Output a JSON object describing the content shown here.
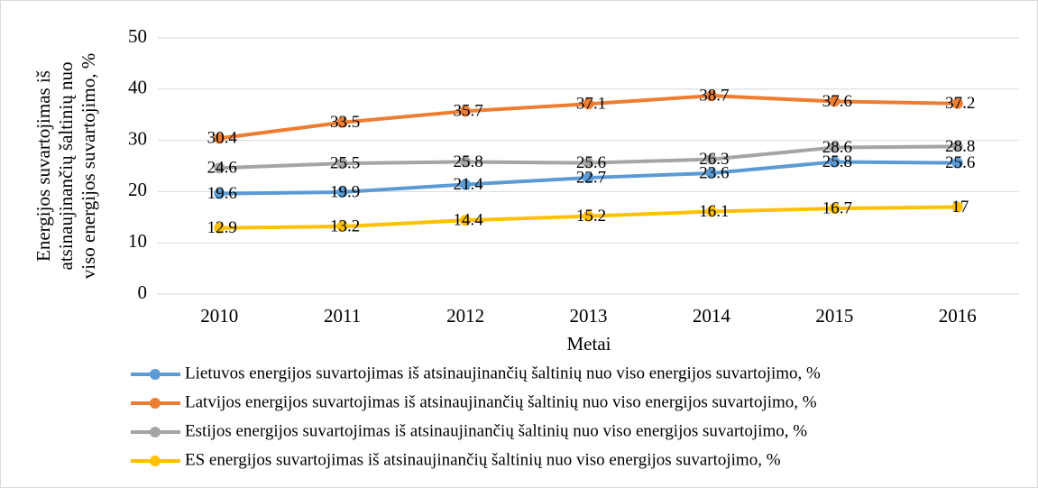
{
  "chart_data": {
    "type": "line",
    "x_label": "Metai",
    "y_label": [
      "Energijos suvartojimas iš",
      "atsinaujinančių šaltinių nuo",
      "viso energijos suvartojimo, %"
    ],
    "categories": [
      "2010",
      "2011",
      "2012",
      "2013",
      "2014",
      "2015",
      "2016"
    ],
    "ylim": [
      0,
      50
    ],
    "yticks": [
      0,
      10,
      20,
      30,
      40,
      50
    ],
    "grid": true,
    "legend": "bottom",
    "series": [
      {
        "name": "Lietuvos energijos suvartojimas iš atsinaujinančių šaltinių nuo viso energijos suvartojimo, %",
        "color": "#5b9bd5",
        "values": [
          19.6,
          19.9,
          21.4,
          22.7,
          23.6,
          25.8,
          25.6
        ]
      },
      {
        "name": "Latvijos energijos suvartojimas iš atsinaujinančių šaltinių nuo viso energijos suvartojimo, %",
        "color": "#ed7d31",
        "values": [
          30.4,
          33.5,
          35.7,
          37.1,
          38.7,
          37.6,
          37.2
        ]
      },
      {
        "name": "Estijos energijos suvartojimas iš atsinaujinančių šaltinių nuo viso energijos suvartojimo, %",
        "color": "#a5a5a5",
        "values": [
          24.6,
          25.5,
          25.8,
          25.6,
          26.3,
          28.6,
          28.8
        ]
      },
      {
        "name": "ES energijos suvartojimas iš atsinaujinančių šaltinių nuo viso energijos suvartojimo, %",
        "color": "#ffc000",
        "values": [
          12.9,
          13.2,
          14.4,
          15.2,
          16.1,
          16.7,
          17
        ]
      }
    ]
  }
}
